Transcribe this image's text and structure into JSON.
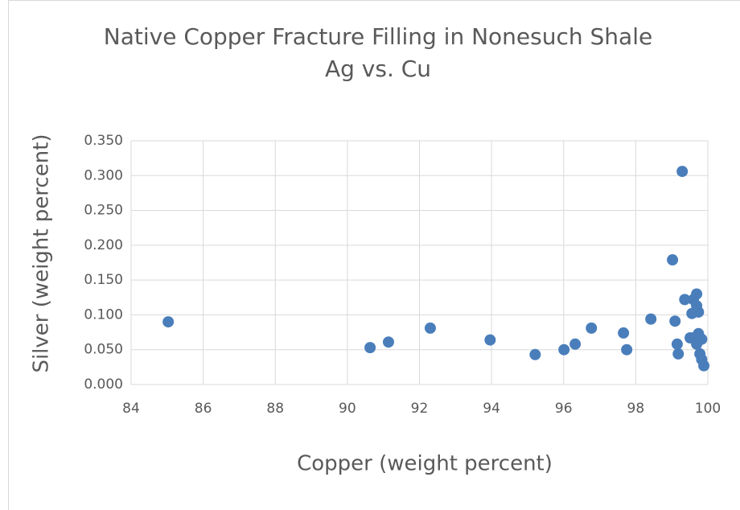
{
  "chart_data": {
    "type": "scatter",
    "title": "Native Copper Fracture Filling in Nonesuch Shale",
    "subtitle": "Ag vs. Cu",
    "x_label": "Copper (weight percent)",
    "y_label": "Silver (weight percent)",
    "color": "#4a7ebb",
    "grid": true,
    "xlim": [
      84,
      100
    ],
    "xticks": [
      84,
      86,
      88,
      90,
      92,
      94,
      96,
      98,
      100
    ],
    "ylim": [
      0,
      0.35
    ],
    "yticks": [
      {
        "value": 0,
        "label": "0.000"
      },
      {
        "value": 0.05,
        "label": "0.050"
      },
      {
        "value": 0.1,
        "label": "0.100"
      },
      {
        "value": 0.15,
        "label": "0.150"
      },
      {
        "value": 0.2,
        "label": "0.200"
      },
      {
        "value": 0.25,
        "label": "0.250"
      },
      {
        "value": 0.3,
        "label": "0.300"
      },
      {
        "value": 0.35,
        "label": "0.350"
      }
    ],
    "x": [
      85.03,
      90.63,
      91.14,
      92.3,
      93.96,
      95.21,
      96.01,
      96.32,
      96.77,
      97.66,
      97.75,
      98.42,
      99.02,
      99.29,
      99.09,
      99.15,
      99.18,
      99.36,
      99.56,
      99.6,
      99.69,
      99.74,
      99.69,
      99.6,
      99.74,
      99.69,
      99.83,
      99.78,
      99.83,
      99.89,
      99.51,
      99.69
    ],
    "values": [
      0.09,
      0.053,
      0.061,
      0.081,
      0.064,
      0.043,
      0.05,
      0.058,
      0.081,
      0.074,
      0.05,
      0.094,
      0.179,
      0.306,
      0.091,
      0.058,
      0.044,
      0.122,
      0.102,
      0.122,
      0.13,
      0.104,
      0.113,
      0.067,
      0.073,
      0.058,
      0.065,
      0.044,
      0.036,
      0.027,
      0.067,
      0.064
    ]
  }
}
